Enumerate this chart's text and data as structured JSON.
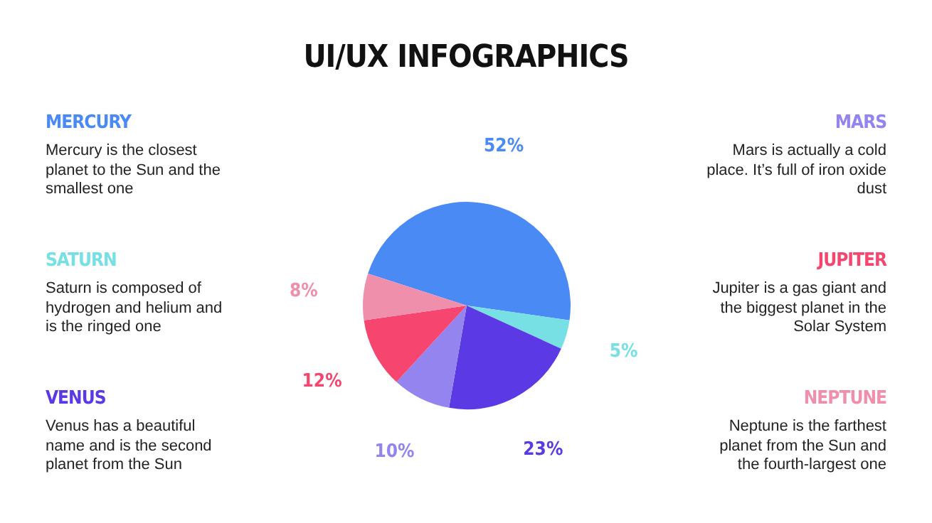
{
  "chart_data": {
    "type": "pie",
    "title": "UI/UX INFOGRAPHICS",
    "categories": [
      null,
      null,
      null,
      null,
      null,
      null
    ],
    "values": [
      52,
      5,
      23,
      10,
      12,
      8
    ],
    "value_labels": [
      "52%",
      "5%",
      "23%",
      "10%",
      "12%",
      "8%"
    ],
    "colors": [
      "#4a8af4",
      "#76e0e4",
      "#5b3ae6",
      "#9384ef",
      "#f6466f",
      "#f08fac"
    ],
    "annotations": [
      "MERCURY",
      "Mercury is the closest planet to the Sun and the smallest one",
      "SATURN",
      "Saturn is composed of hydrogen and helium and is the ringed one",
      "VENUS",
      "Venus has a beautiful name and is the second planet from the Sun",
      "MARS",
      "Mars is actually a cold place. It’s full of iron oxide dust",
      "JUPITER",
      "Jupiter is a gas giant and the biggest planet in the Solar System",
      "NEPTUNE",
      "Neptune is the farthest planet from the Sun and the fourth-largest one"
    ],
    "legend": false
  }
}
